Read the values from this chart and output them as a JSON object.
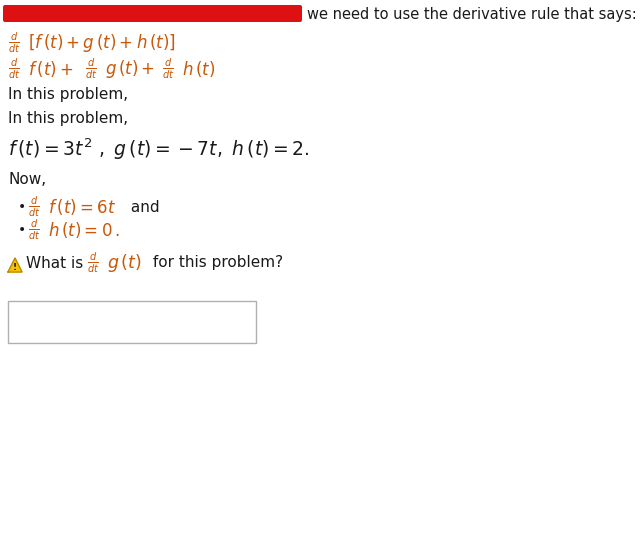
{
  "bg_color": "#ffffff",
  "red_bar_color": "#dd1111",
  "orange_color": "#c8580a",
  "black_color": "#1a1a1a",
  "fig_width": 6.41,
  "fig_height": 5.35,
  "dpi": 100,
  "header_text": "we need to use the derivative rule that says:",
  "in_this_problem": "In this problem,",
  "now_text": "Now,",
  "and_text": " and",
  "what_text": "What is",
  "for_text": " for this problem?"
}
